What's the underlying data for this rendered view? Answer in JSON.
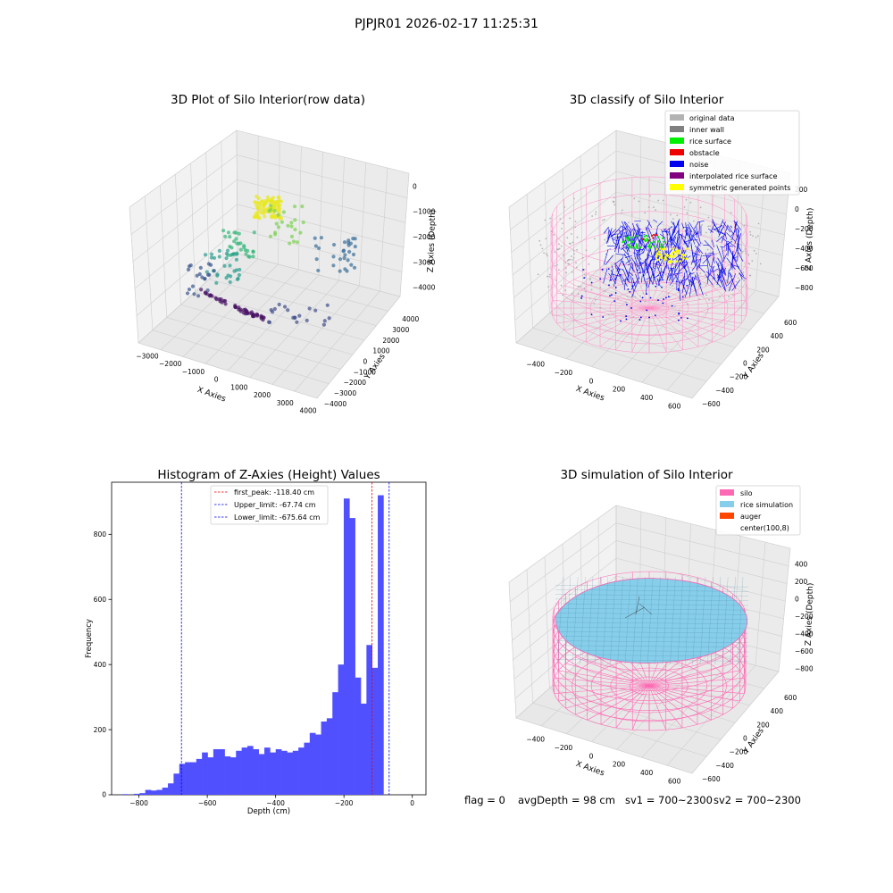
{
  "figure": {
    "suptitle": "PJPJR01 2026-02-17 11:25:31",
    "status": {
      "flag": "flag = 0",
      "avg_depth": "avgDepth = 98 cm",
      "sv1": "sv1 = 700~2300",
      "sv2": "sv2 = 700~2300"
    }
  },
  "colors": {
    "original_data": "#b3b3b3",
    "inner_wall": "#808080",
    "rice_surface": "#00ee00",
    "obstacle": "#ee0000",
    "noise": "#0000ee",
    "interpolated": "#800080",
    "symmetric": "#ffff00",
    "silo": "#ff69b4",
    "rice_sim": "#87ceeb",
    "auger": "#ff4500",
    "hist_bar": "#5050ff",
    "first_peak_line": "#ee0000",
    "limit_line": "#0000ee"
  },
  "panels": {
    "raw": {
      "title": "3D Plot of Silo Interior(row data)",
      "xlabel": "X Axies",
      "ylabel": "Y Axies",
      "zlabel": "Z Axies (Depth)",
      "xticks": [
        "−3000",
        "−2000",
        "−1000",
        "0",
        "1000",
        "2000",
        "3000",
        "4000"
      ],
      "yticks": [
        "−4000",
        "−3000",
        "−2000",
        "−1000",
        "0",
        "1000",
        "2000",
        "3000",
        "4000"
      ],
      "zticks": [
        "0",
        "−1000",
        "−2000",
        "−3000",
        "−4000"
      ]
    },
    "classify": {
      "title": "3D classify of Silo Interior",
      "xlabel": "X Axies",
      "ylabel": "Y Axies",
      "zlabel": "Z Axies (Depth)",
      "xticks": [
        "−400",
        "−200",
        "0",
        "200",
        "400",
        "600"
      ],
      "yticks": [
        "−600",
        "−400",
        "−200",
        "0",
        "200",
        "400",
        "600"
      ],
      "zticks": [
        "200",
        "0",
        "−200",
        "−400",
        "−600",
        "−800"
      ],
      "legend": [
        "original data",
        "inner wall",
        "rice surface",
        "obstacle",
        "noise",
        "interpolated rice surface",
        "symmetric generated points"
      ]
    },
    "simulation": {
      "title": "3D simulation of Silo Interior",
      "xlabel": "X Axies",
      "ylabel": "Y Axies",
      "zlabel": "Z Axies (Depth)",
      "xticks": [
        "−400",
        "−200",
        "0",
        "200",
        "400",
        "600"
      ],
      "yticks": [
        "−600",
        "−400",
        "−200",
        "0",
        "200",
        "400",
        "600"
      ],
      "zticks": [
        "400",
        "200",
        "0",
        "−200",
        "−400",
        "−600",
        "−800"
      ],
      "legend": [
        "silo",
        "rice simulation",
        "auger",
        "center(100,8)"
      ]
    }
  },
  "chart_data": [
    {
      "type": "histogram",
      "title": "Histogram of Z-Axies (Height) Values",
      "xlabel": "Depth (cm)",
      "ylabel": "Frequency",
      "xlim": [
        -880,
        40
      ],
      "ylim": [
        0,
        960
      ],
      "xticks": [
        -800,
        -600,
        -400,
        -200,
        0
      ],
      "xtick_labels": [
        "−800",
        "−600",
        "−400",
        "−200",
        "0"
      ],
      "yticks": [
        0,
        200,
        400,
        600,
        800
      ],
      "bins": {
        "start": -848,
        "width": 16.6,
        "counts": [
          2,
          0,
          3,
          5,
          15,
          13,
          15,
          22,
          35,
          65,
          95,
          100,
          100,
          110,
          130,
          115,
          140,
          140,
          118,
          115,
          135,
          145,
          150,
          140,
          125,
          145,
          130,
          140,
          135,
          130,
          135,
          145,
          160,
          190,
          185,
          225,
          235,
          315,
          400,
          910,
          850,
          360,
          280,
          460,
          390,
          920
        ]
      },
      "lines": [
        {
          "label": "first_peak: -118.40 cm",
          "x": -118.4,
          "style": "first_peak"
        },
        {
          "label": "Upper_limit: -67.74 cm",
          "x": -67.74,
          "style": "limit"
        },
        {
          "label": "Lower_limit: -675.64 cm",
          "x": -675.64,
          "style": "limit"
        }
      ]
    }
  ]
}
